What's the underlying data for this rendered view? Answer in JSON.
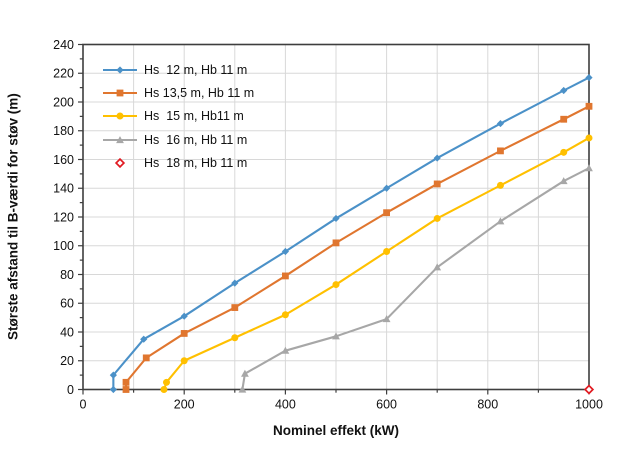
{
  "chart_data": {
    "type": "line",
    "title": "",
    "xlabel": "Nominel effekt (kW)",
    "ylabel": "Største afstand til B-værdi for støv (m)",
    "xlim": [
      0,
      1000
    ],
    "ylim": [
      0,
      240
    ],
    "x_ticks": [
      0,
      200,
      400,
      600,
      800,
      1000
    ],
    "x_minor_tick_step": 100,
    "y_ticks": [
      0,
      20,
      40,
      60,
      80,
      100,
      120,
      140,
      160,
      180,
      200,
      220,
      240
    ],
    "y_minor_tick_step": 10,
    "grid": true,
    "legend_position": "top-left-inside",
    "axis_color": "#3e3e3e",
    "grid_color": "#d8d8d8",
    "series": [
      {
        "name": "Hs  12 m, Hb 11 m",
        "color": "#4b91c8",
        "marker": "diamond",
        "line": true,
        "points": [
          [
            60,
            0
          ],
          [
            60,
            10
          ],
          [
            120,
            35
          ],
          [
            200,
            51
          ],
          [
            300,
            74
          ],
          [
            400,
            96
          ],
          [
            500,
            119
          ],
          [
            600,
            140
          ],
          [
            700,
            161
          ],
          [
            825,
            185
          ],
          [
            950,
            208
          ],
          [
            1000,
            217
          ]
        ]
      },
      {
        "name": "Hs 13,5 m, Hb 11 m",
        "color": "#e0762f",
        "marker": "square",
        "line": true,
        "points": [
          [
            85,
            0
          ],
          [
            85,
            5
          ],
          [
            125,
            22
          ],
          [
            200,
            39
          ],
          [
            300,
            57
          ],
          [
            400,
            79
          ],
          [
            500,
            102
          ],
          [
            600,
            123
          ],
          [
            700,
            143
          ],
          [
            825,
            166
          ],
          [
            950,
            188
          ],
          [
            1000,
            197
          ]
        ]
      },
      {
        "name": "Hs  15 m, Hb11 m",
        "color": "#ffc000",
        "marker": "circle",
        "line": true,
        "points": [
          [
            160,
            0
          ],
          [
            165,
            5
          ],
          [
            200,
            20
          ],
          [
            300,
            36
          ],
          [
            400,
            52
          ],
          [
            500,
            73
          ],
          [
            600,
            96
          ],
          [
            700,
            119
          ],
          [
            825,
            142
          ],
          [
            950,
            165
          ],
          [
            1000,
            175
          ]
        ]
      },
      {
        "name": "Hs  16 m, Hb 11 m",
        "color": "#a7a7a7",
        "marker": "triangle",
        "line": true,
        "points": [
          [
            315,
            0
          ],
          [
            320,
            11
          ],
          [
            400,
            27
          ],
          [
            500,
            37
          ],
          [
            600,
            49
          ],
          [
            700,
            85
          ],
          [
            825,
            117
          ],
          [
            950,
            145
          ],
          [
            1000,
            154
          ]
        ]
      },
      {
        "name": "Hs  18 m, Hb 11 m",
        "color": "#e11b22",
        "marker": "open-diamond",
        "line": false,
        "points": [
          [
            1000,
            0
          ]
        ]
      }
    ]
  }
}
